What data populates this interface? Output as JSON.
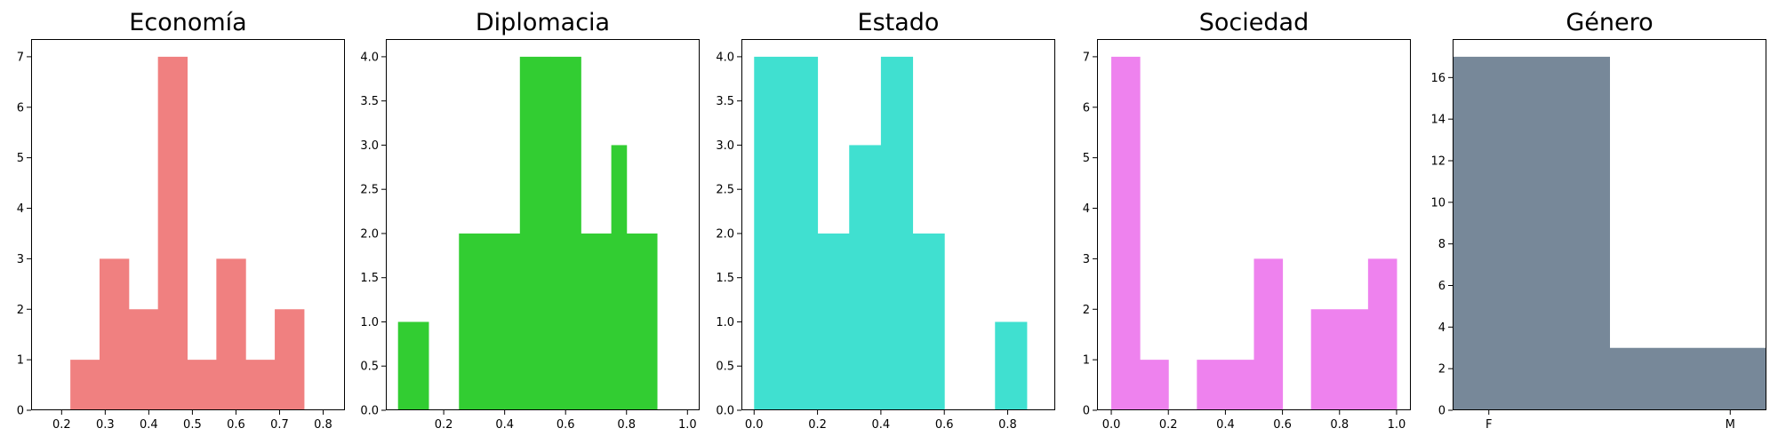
{
  "chart_data": [
    {
      "type": "bar",
      "title": "Economía",
      "color": "#F08080",
      "xlim": [
        0.13,
        0.85
      ],
      "ylim": [
        0,
        7.35
      ],
      "xticks": [
        0.2,
        0.3,
        0.4,
        0.5,
        0.6,
        0.7,
        0.8
      ],
      "xtick_labels": [
        "0.2",
        "0.3",
        "0.4",
        "0.5",
        "0.6",
        "0.7",
        "0.8"
      ],
      "yticks": [
        0,
        1,
        2,
        3,
        4,
        5,
        6,
        7
      ],
      "ytick_labels": [
        "0",
        "1",
        "2",
        "3",
        "4",
        "5",
        "6",
        "7"
      ],
      "bins": [
        [
          0.22,
          0.287,
          1
        ],
        [
          0.287,
          0.354,
          3
        ],
        [
          0.354,
          0.421,
          2
        ],
        [
          0.421,
          0.488,
          7
        ],
        [
          0.488,
          0.555,
          1
        ],
        [
          0.555,
          0.622,
          3
        ],
        [
          0.622,
          0.689,
          1
        ],
        [
          0.689,
          0.756,
          2
        ]
      ]
    },
    {
      "type": "bar",
      "title": "Diplomacia",
      "color": "#32CD32",
      "xlim": [
        0.01,
        1.04
      ],
      "ylim": [
        0,
        4.2
      ],
      "xticks": [
        0.2,
        0.4,
        0.6,
        0.8,
        1.0
      ],
      "xtick_labels": [
        "0.2",
        "0.4",
        "0.6",
        "0.8",
        "1.0"
      ],
      "yticks": [
        0,
        0.5,
        1,
        1.5,
        2,
        2.5,
        3,
        3.5,
        4
      ],
      "ytick_labels": [
        "0.0",
        "0.5",
        "1.0",
        "1.5",
        "2.0",
        "2.5",
        "3.0",
        "3.5",
        "4.0"
      ],
      "bins": [
        [
          0.05,
          0.15,
          1
        ],
        [
          0.15,
          0.25,
          0
        ],
        [
          0.25,
          0.35,
          2
        ],
        [
          0.35,
          0.45,
          2
        ],
        [
          0.45,
          0.55,
          4
        ],
        [
          0.55,
          0.65,
          4
        ],
        [
          0.65,
          0.75,
          2
        ],
        [
          0.75,
          0.8,
          3
        ],
        [
          0.8,
          0.9,
          2
        ]
      ]
    },
    {
      "type": "bar",
      "title": "Estado",
      "color": "#40E0D0",
      "xlim": [
        -0.04,
        0.95
      ],
      "ylim": [
        0,
        4.2
      ],
      "xticks": [
        0.0,
        0.2,
        0.4,
        0.6,
        0.8
      ],
      "xtick_labels": [
        "0.0",
        "0.2",
        "0.4",
        "0.6",
        "0.8"
      ],
      "yticks": [
        0,
        0.5,
        1,
        1.5,
        2,
        2.5,
        3,
        3.5,
        4
      ],
      "ytick_labels": [
        "0.0",
        "0.5",
        "1.0",
        "1.5",
        "2.0",
        "2.5",
        "3.0",
        "3.5",
        "4.0"
      ],
      "bins": [
        [
          0.0,
          0.2,
          4
        ],
        [
          0.2,
          0.3,
          2
        ],
        [
          0.3,
          0.4,
          3
        ],
        [
          0.4,
          0.5,
          4
        ],
        [
          0.5,
          0.6,
          2
        ],
        [
          0.76,
          0.86,
          1
        ]
      ]
    },
    {
      "type": "bar",
      "title": "Sociedad",
      "color": "#EE82EE",
      "xlim": [
        -0.05,
        1.05
      ],
      "ylim": [
        0,
        7.35
      ],
      "xticks": [
        0.0,
        0.2,
        0.4,
        0.6,
        0.8,
        1.0
      ],
      "xtick_labels": [
        "0.0",
        "0.2",
        "0.4",
        "0.6",
        "0.8",
        "1.0"
      ],
      "yticks": [
        0,
        1,
        2,
        3,
        4,
        5,
        6,
        7
      ],
      "ytick_labels": [
        "0",
        "1",
        "2",
        "3",
        "4",
        "5",
        "6",
        "7"
      ],
      "bins": [
        [
          0.0,
          0.1,
          7
        ],
        [
          0.1,
          0.2,
          1
        ],
        [
          0.3,
          0.5,
          1
        ],
        [
          0.5,
          0.6,
          3
        ],
        [
          0.7,
          0.9,
          2
        ],
        [
          0.9,
          1.0,
          3
        ]
      ]
    },
    {
      "type": "bar",
      "title": "Género",
      "color": "#778899",
      "xlim": [
        -0.15,
        1.15
      ],
      "ylim": [
        0,
        17.85
      ],
      "xticks": [
        0,
        1
      ],
      "xtick_labels": [
        "F",
        "M"
      ],
      "yticks": [
        0,
        2,
        4,
        6,
        8,
        10,
        12,
        14,
        16
      ],
      "ytick_labels": [
        "0",
        "2",
        "4",
        "6",
        "8",
        "10",
        "12",
        "14",
        "16"
      ],
      "bins": [
        [
          -0.5,
          0.5,
          17
        ],
        [
          0.5,
          1.5,
          3
        ]
      ]
    }
  ]
}
